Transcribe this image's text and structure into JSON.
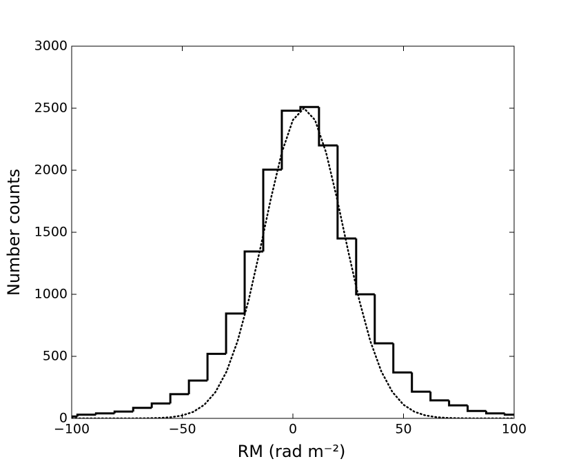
{
  "chart_data": {
    "type": "histogram",
    "xlabel": "RM (rad m⁻²)",
    "ylabel": "Number counts",
    "bins": [
      -105.8,
      -97.4,
      -89,
      -80.6,
      -72.2,
      -63.8,
      -55.4,
      -47,
      -38.6,
      -30.2,
      -21.8,
      -13.4,
      -5,
      3.4,
      11.8,
      20.2,
      28.6,
      37,
      45.4,
      53.8,
      62.2,
      70.6,
      79,
      87.4,
      95.8,
      104.2
    ],
    "values": [
      15,
      30,
      40,
      55,
      85,
      120,
      195,
      305,
      520,
      845,
      1345,
      2005,
      2480,
      2510,
      2200,
      1450,
      1000,
      605,
      370,
      215,
      145,
      105,
      60,
      40,
      30
    ],
    "color": "#000000",
    "fit": {
      "color": "#000000",
      "x": [
        -100,
        -95,
        -90,
        -85,
        -80,
        -75,
        -70,
        -65,
        -60,
        -55,
        -50,
        -45,
        -40,
        -35,
        -30,
        -25,
        -20,
        -15,
        -10,
        -5,
        0,
        5,
        10,
        15,
        20,
        25,
        30,
        35,
        40,
        45,
        50,
        55,
        60,
        65,
        70,
        75,
        80,
        85,
        90,
        95,
        100
      ],
      "values": [
        0,
        0,
        0,
        0,
        0,
        0.1,
        0.4,
        1.3,
        3.7,
        9.6,
        23.4,
        52.7,
        110,
        212,
        377,
        623,
        953,
        1348,
        1767,
        2143,
        2405,
        2500,
        2405,
        2143,
        1767,
        1348,
        953,
        623,
        377,
        212,
        110,
        52.7,
        23.4,
        9.6,
        3.7,
        1.3,
        0.4,
        0,
        0,
        0,
        0
      ]
    },
    "xlim": [
      -100,
      100
    ],
    "xticks": [
      {
        "value": -100,
        "label": "−100"
      },
      {
        "value": -50,
        "label": "−50"
      },
      0,
      50,
      100
    ],
    "ylim": [
      0,
      3000
    ],
    "yticks": [
      0,
      500,
      1000,
      1500,
      2000,
      2500,
      3000
    ]
  }
}
